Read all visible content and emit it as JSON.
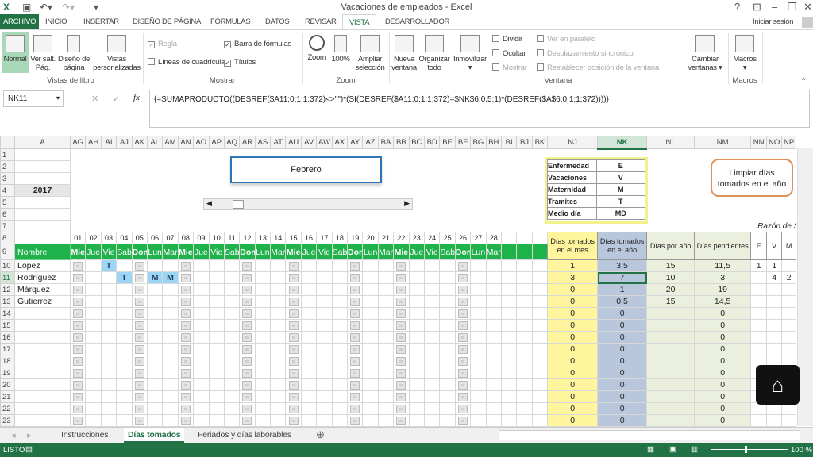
{
  "window": {
    "title": "Vacaciones de empleados - Excel",
    "help": "?",
    "signin": "Iniciar sesión"
  },
  "tabs": [
    "ARCHIVO",
    "INICIO",
    "INSERTAR",
    "DISEÑO DE PÁGINA",
    "FÓRMULAS",
    "DATOS",
    "REVISAR",
    "VISTA",
    "DESARROLLADOR"
  ],
  "active_tab": "VISTA",
  "ribbon": {
    "vistas_libro": {
      "label": "Vistas de libro",
      "normal": "Normal",
      "ver_salt": "Ver salt. Pág.",
      "diseno": "Diseño de página",
      "vistas": "Vistas personalizadas"
    },
    "mostrar": {
      "label": "Mostrar",
      "regla": "Regla",
      "barra": "Barra de fórmulas",
      "lineas": "Líneas de cuadrícula",
      "titulos": "Títulos"
    },
    "zoom": {
      "label": "Zoom",
      "zoom": "Zoom",
      "cien": "100%",
      "ampliar": "Ampliar selección"
    },
    "ventana": {
      "label": "Ventana",
      "nueva": "Nueva ventana",
      "organizar": "Organizar todo",
      "inmovilizar": "Inmovilizar",
      "dividir": "Dividir",
      "ocultar": "Ocultar",
      "mostrar": "Mostrar",
      "paralelo": "Ver en paralelo",
      "desplazamiento": "Desplazamiento sincrónico",
      "restablecer": "Restablecer posición de la ventana",
      "cambiar": "Cambiar ventanas"
    },
    "macros": {
      "label": "Macros",
      "macros": "Macros"
    }
  },
  "formula_bar": {
    "name_box": "NK11",
    "formula": "{=SUMAPRODUCTO((DESREF($A11;0;1;1;372)<>\"\")*(SI(DESREF($A11;0;1;1;372)=$NK$6;0,5;1)*(DESREF($A$6;0;1;1;372))))}"
  },
  "columns": [
    "A",
    "AG",
    "AH",
    "AI",
    "AJ",
    "AK",
    "AL",
    "AM",
    "AN",
    "AO",
    "AP",
    "AQ",
    "AR",
    "AS",
    "AT",
    "AU",
    "AV",
    "AW",
    "AX",
    "AY",
    "AZ",
    "BA",
    "BB",
    "BC",
    "BD",
    "BE",
    "BF",
    "BG",
    "BH",
    "BI",
    "BJ",
    "BK",
    "NJ",
    "NK",
    "NL",
    "NM",
    "NN",
    "NO",
    "NP"
  ],
  "selected_column": "NK",
  "selected_row": 11,
  "year": "2017",
  "month_box": "Febrero",
  "day_numbers": [
    "01",
    "02",
    "03",
    "04",
    "05",
    "06",
    "07",
    "08",
    "09",
    "10",
    "11",
    "12",
    "13",
    "14",
    "15",
    "16",
    "17",
    "18",
    "19",
    "20",
    "21",
    "22",
    "23",
    "24",
    "25",
    "26",
    "27",
    "28"
  ],
  "day_names": [
    "Mie",
    "Jue",
    "Vie",
    "Sab",
    "Dom",
    "Lun",
    "Mar",
    "Mie",
    "Jue",
    "Vie",
    "Sab",
    "Dom",
    "Lun",
    "Mar",
    "Mie",
    "Jue",
    "Vie",
    "Sab",
    "Dom",
    "Lun",
    "Mar",
    "Mie",
    "Jue",
    "Vie",
    "Sab",
    "Dom",
    "Lun",
    "Mar"
  ],
  "name_header": "Nombre",
  "employees": [
    {
      "name": "López",
      "marks": {
        "03": "T"
      }
    },
    {
      "name": "Rodríguez",
      "marks": {
        "04": "T",
        "06": "M",
        "07": "M"
      }
    },
    {
      "name": "Márquez",
      "marks": {}
    },
    {
      "name": "Gutierrez",
      "marks": {}
    }
  ],
  "summary_headers": [
    "Días tomados en el mes",
    "Días tomados en el año",
    "Días por año",
    "Días pendientes"
  ],
  "summary_rows": [
    [
      "1",
      "3,5",
      "15",
      "11,5"
    ],
    [
      "3",
      "7",
      "10",
      "3"
    ],
    [
      "0",
      "1",
      "20",
      "19"
    ],
    [
      "0",
      "0,5",
      "15",
      "14,5"
    ],
    [
      "0",
      "0",
      "",
      "0"
    ],
    [
      "0",
      "0",
      "",
      "0"
    ],
    [
      "0",
      "0",
      "",
      "0"
    ],
    [
      "0",
      "0",
      "",
      "0"
    ],
    [
      "0",
      "0",
      "",
      "0"
    ],
    [
      "0",
      "0",
      "",
      "0"
    ],
    [
      "0",
      "0",
      "",
      "0"
    ],
    [
      "0",
      "0",
      "",
      "0"
    ],
    [
      "0",
      "0",
      "",
      "0"
    ],
    [
      "0",
      "0",
      "",
      "0"
    ]
  ],
  "razon": {
    "title": "Razón de S",
    "headers": [
      "E",
      "V",
      "M"
    ],
    "rows": [
      [
        "1",
        "1",
        ""
      ],
      [
        "",
        "4",
        "2"
      ]
    ]
  },
  "legend": [
    [
      "Enfermedad",
      "E"
    ],
    [
      "Vacaciones",
      "V"
    ],
    [
      "Maternidad",
      "M"
    ],
    [
      "Tramites",
      "T"
    ],
    [
      "Medio día",
      "MD"
    ]
  ],
  "limpiar_button": "Limpiar días tomados en el año",
  "sheets": [
    "Instrucciones",
    "Días tomados",
    "Feriados y días laborables"
  ],
  "active_sheet": "Días tomados",
  "status": {
    "ready": "LISTO",
    "zoom": "100 %"
  },
  "colors": {
    "excel_green": "#217346",
    "header_green": "#1fb14a",
    "month_col": "#fff59d",
    "year_col": "#b8c7dc",
    "mark": "#9dd5f5"
  }
}
